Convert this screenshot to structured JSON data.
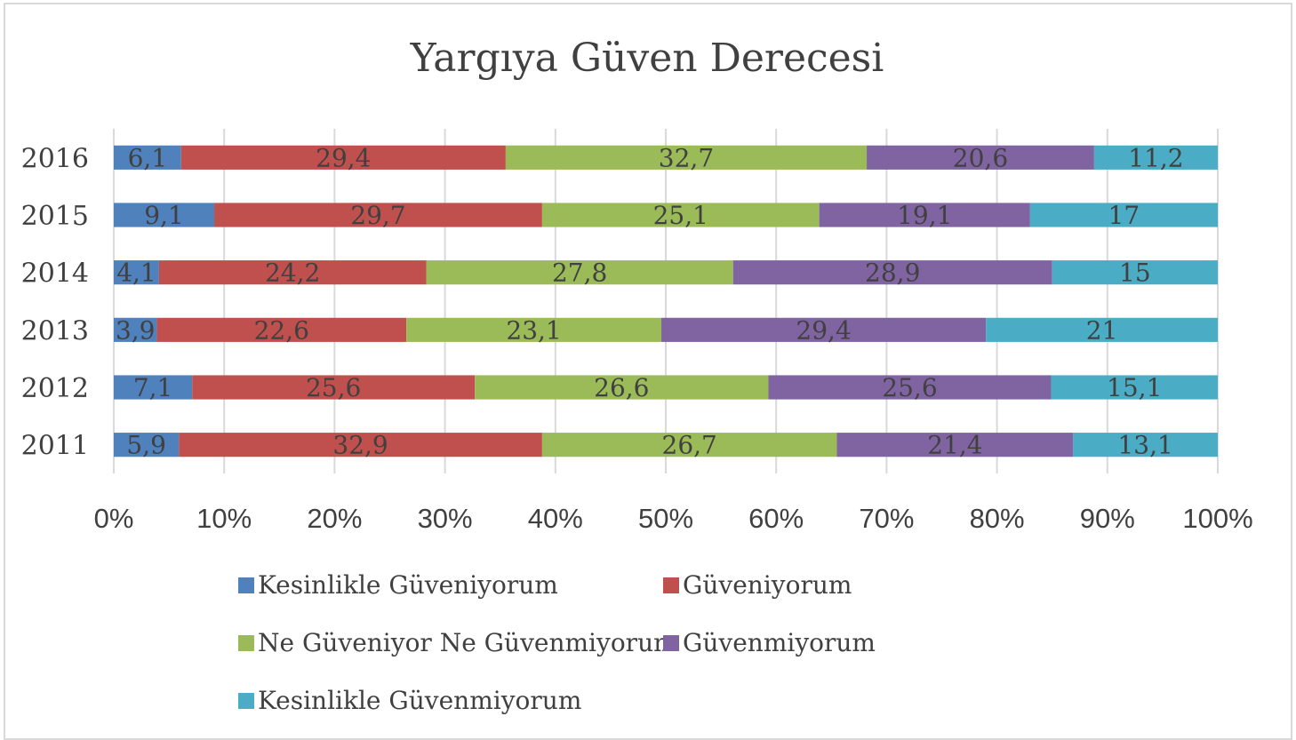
{
  "chart_data": {
    "type": "bar",
    "orientation": "horizontal",
    "stacked": "percent",
    "title": "Yargıya Güven Derecesi",
    "categories": [
      "2016",
      "2015",
      "2014",
      "2013",
      "2012",
      "2011"
    ],
    "series": [
      {
        "name": "Kesinlikle Güveniyorum",
        "color": "#4f81bd",
        "values": [
          6.1,
          9.1,
          4.1,
          3.9,
          7.1,
          5.9
        ],
        "labels": [
          "6,1",
          "9,1",
          "4,1",
          "3,9",
          "7,1",
          "5,9"
        ]
      },
      {
        "name": "Güveniyorum",
        "color": "#c0504d",
        "values": [
          29.4,
          29.7,
          24.2,
          22.6,
          25.6,
          32.9
        ],
        "labels": [
          "29,4",
          "29,7",
          "24,2",
          "22,6",
          "25,6",
          "32,9"
        ]
      },
      {
        "name": "Ne Güveniyor Ne Güvenmiyorum",
        "color": "#9bbb59",
        "values": [
          32.7,
          25.1,
          27.8,
          23.1,
          26.6,
          26.7
        ],
        "labels": [
          "32,7",
          "25,1",
          "27,8",
          "23,1",
          "26,6",
          "26,7"
        ]
      },
      {
        "name": "Güvenmiyorum",
        "color": "#8064a2",
        "values": [
          20.6,
          19.1,
          28.9,
          29.4,
          25.6,
          21.4
        ],
        "labels": [
          "20,6",
          "19,1",
          "28,9",
          "29,4",
          "25,6",
          "21,4"
        ]
      },
      {
        "name": "Kesinlikle Güvenmiyorum",
        "color": "#4bacc6",
        "values": [
          11.2,
          17,
          15,
          21,
          15.1,
          13.1
        ],
        "labels": [
          "11,2",
          "17",
          "15",
          "21",
          "15,1",
          "13,1"
        ]
      }
    ],
    "xticks": [
      "0%",
      "10%",
      "20%",
      "30%",
      "40%",
      "50%",
      "60%",
      "70%",
      "80%",
      "90%",
      "100%"
    ],
    "xlim": [
      0,
      100
    ],
    "grid": true,
    "legend": "bottom"
  }
}
